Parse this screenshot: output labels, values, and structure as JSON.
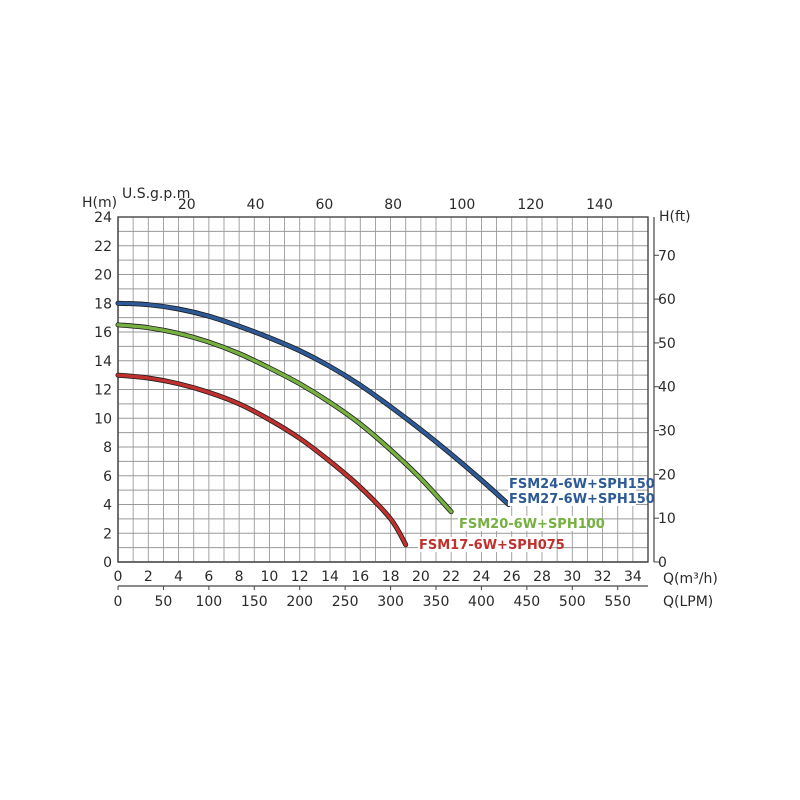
{
  "chart_data": {
    "type": "line",
    "title": "",
    "axes": {
      "left": {
        "label": "H(m)",
        "min": 0,
        "max": 24,
        "ticks": [
          0,
          2,
          4,
          6,
          8,
          10,
          12,
          14,
          16,
          18,
          20,
          22,
          24
        ]
      },
      "right": {
        "label": "H(ft)",
        "ticks": [
          0,
          10,
          20,
          30,
          40,
          50,
          60,
          70
        ]
      },
      "bottom_primary": {
        "label": "Q(m³/h)",
        "min": 0,
        "max": 35,
        "ticks": [
          0,
          2,
          4,
          6,
          8,
          10,
          12,
          14,
          16,
          18,
          20,
          22,
          24,
          26,
          28,
          30,
          32,
          34
        ]
      },
      "bottom_secondary": {
        "label": "Q(LPM)",
        "ticks": [
          0,
          50,
          100,
          150,
          200,
          250,
          300,
          350,
          400,
          450,
          500,
          550
        ]
      },
      "top": {
        "label": "U.S.g.p.m",
        "ticks": [
          20,
          40,
          60,
          80,
          100,
          120,
          140
        ]
      }
    },
    "grid": true,
    "series": [
      {
        "name": "FSM24-6W+SPH150",
        "name2": "FSM27-6W+SPH150",
        "color": "#2d5a96",
        "points": [
          [
            0,
            18
          ],
          [
            2,
            17.9
          ],
          [
            4,
            17.6
          ],
          [
            6,
            17.1
          ],
          [
            8,
            16.4
          ],
          [
            10,
            15.6
          ],
          [
            12,
            14.7
          ],
          [
            14,
            13.6
          ],
          [
            16,
            12.3
          ],
          [
            18,
            10.8
          ],
          [
            20,
            9.2
          ],
          [
            22,
            7.5
          ],
          [
            24,
            5.7
          ],
          [
            25.8,
            4
          ]
        ]
      },
      {
        "name": "FSM20-6W+SPH100",
        "color": "#76b041",
        "points": [
          [
            0,
            16.5
          ],
          [
            2,
            16.3
          ],
          [
            4,
            15.9
          ],
          [
            6,
            15.3
          ],
          [
            8,
            14.5
          ],
          [
            10,
            13.5
          ],
          [
            12,
            12.4
          ],
          [
            14,
            11.1
          ],
          [
            16,
            9.6
          ],
          [
            18,
            7.8
          ],
          [
            20,
            5.8
          ],
          [
            22,
            3.5
          ]
        ]
      },
      {
        "name": "FSM17-6W+SPH075",
        "color": "#c0302e",
        "points": [
          [
            0,
            13
          ],
          [
            2,
            12.8
          ],
          [
            4,
            12.4
          ],
          [
            6,
            11.8
          ],
          [
            8,
            11
          ],
          [
            10,
            9.9
          ],
          [
            12,
            8.6
          ],
          [
            14,
            7
          ],
          [
            16,
            5.2
          ],
          [
            18,
            3
          ],
          [
            19,
            1.2
          ]
        ]
      }
    ]
  }
}
